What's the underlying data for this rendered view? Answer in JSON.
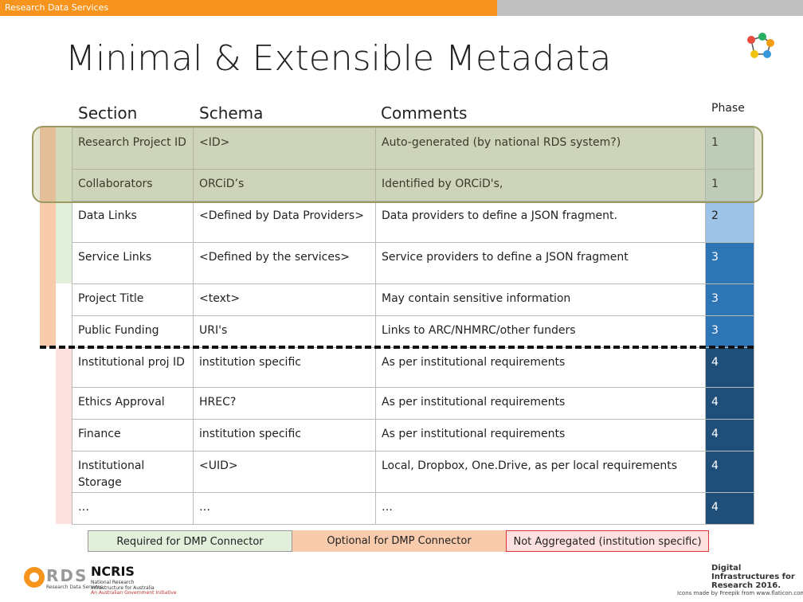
{
  "header": {
    "banner": "Research Data Services",
    "title": "Minimal & Extensible Metadata"
  },
  "table": {
    "columns": [
      "Section",
      "Schema",
      "Comments",
      "Phase"
    ],
    "rows": [
      [
        "Research Project ID",
        "<ID>",
        "Auto-generated (by national RDS system?)",
        "1"
      ],
      [
        "Collaborators",
        "ORCiD’s",
        "Identified by ORCiD's,",
        "1"
      ],
      [
        "Data Links",
        "<Defined by Data Providers>",
        "Data providers to define a JSON fragment.",
        "2"
      ],
      [
        "Service Links",
        "<Defined by the services>",
        "Service providers to define a JSON fragment",
        "3"
      ],
      [
        "Project Title",
        "<text>",
        "May contain sensitive information",
        "3"
      ],
      [
        "Public Funding",
        "URI's",
        "Links to ARC/NHMRC/other funders",
        "3"
      ],
      [
        "Institutional proj ID",
        "institution specific",
        "As per institutional requirements",
        "4"
      ],
      [
        "Ethics Approval",
        "HREC?",
        "As per institutional requirements",
        "4"
      ],
      [
        "Finance",
        "institution specific",
        "As per institutional requirements",
        "4"
      ],
      [
        "Institutional Storage",
        "<UID>",
        "Local, Dropbox, One.Drive, as per local requirements",
        "4"
      ],
      [
        "…",
        "…",
        "…",
        "4"
      ]
    ]
  },
  "legend": [
    "Required for DMP Connector",
    "Optional for DMP Connector",
    "Not Aggregated (institution specific)"
  ],
  "footer": {
    "rds": "RDS",
    "rds_sub": "Research Data Services",
    "ncris": "NCRIS",
    "ncris_sub": "National Research Infrastructure for Australia",
    "ncris_sub2": "An Australian Government Initiative",
    "conf": "Digital Infrastructures for Research 2016.",
    "credit": "Icons made by Freepik from www.flaticon.com"
  }
}
